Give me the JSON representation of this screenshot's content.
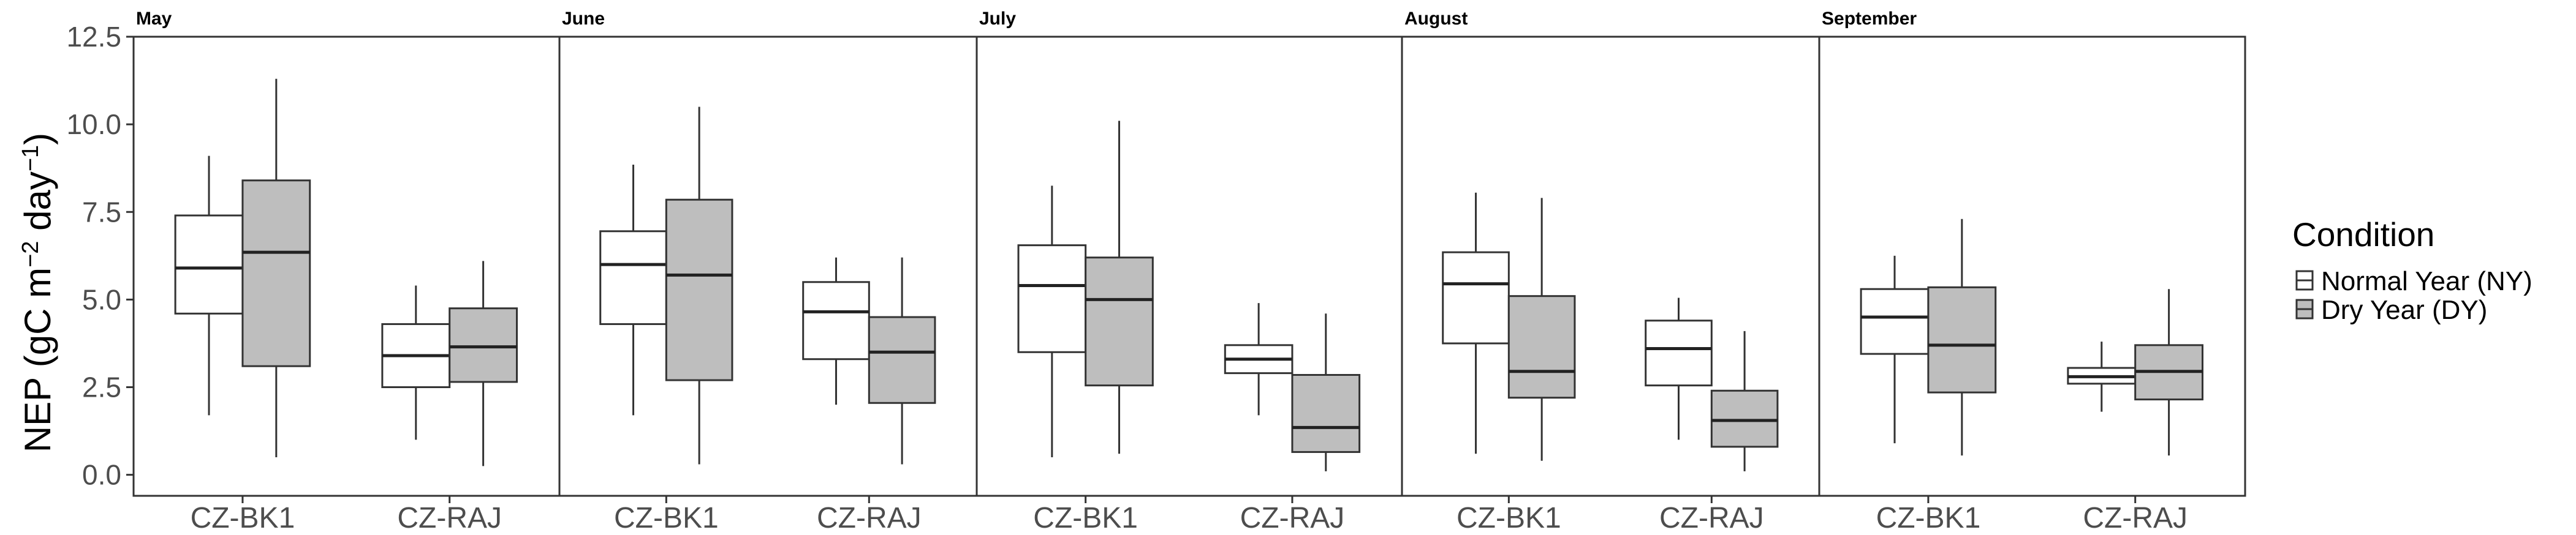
{
  "chart_data": {
    "type": "boxplot",
    "ylabel_main": "NEP (gC m",
    "ylabel_exp1": "−2",
    "ylabel_mid": " day",
    "ylabel_exp2": "−1",
    "ylabel_end": ")",
    "ylim": [
      -0.6,
      12.5
    ],
    "yticks": [
      "0.0",
      "2.5",
      "5.0",
      "7.5",
      "10.0",
      "12.5"
    ],
    "ytick_values": [
      0,
      2.5,
      5,
      7.5,
      10,
      12.5
    ],
    "sites": [
      "CZ-BK1",
      "CZ-RAJ"
    ],
    "legend": {
      "title": "Condition",
      "entries": [
        {
          "label": "Normal Year (NY)",
          "color": "#ffffff"
        },
        {
          "label": "Dry Year (DY)",
          "color": "#bebebe"
        }
      ]
    },
    "panels": [
      {
        "month": "May",
        "boxes": [
          {
            "site": "CZ-BK1",
            "condition": "NY",
            "min": 1.7,
            "q1": 4.6,
            "median": 5.9,
            "q3": 7.4,
            "max": 9.1
          },
          {
            "site": "CZ-BK1",
            "condition": "DY",
            "min": 0.5,
            "q1": 3.1,
            "median": 6.35,
            "q3": 8.4,
            "max": 11.3
          },
          {
            "site": "CZ-RAJ",
            "condition": "NY",
            "min": 1.0,
            "q1": 2.5,
            "median": 3.4,
            "q3": 4.3,
            "max": 5.4
          },
          {
            "site": "CZ-RAJ",
            "condition": "DY",
            "min": 0.25,
            "q1": 2.65,
            "median": 3.65,
            "q3": 4.75,
            "max": 6.1
          }
        ]
      },
      {
        "month": "June",
        "boxes": [
          {
            "site": "CZ-BK1",
            "condition": "NY",
            "min": 1.7,
            "q1": 4.3,
            "median": 6.0,
            "q3": 6.95,
            "max": 8.85
          },
          {
            "site": "CZ-BK1",
            "condition": "DY",
            "min": 0.3,
            "q1": 2.7,
            "median": 5.7,
            "q3": 7.85,
            "max": 10.5
          },
          {
            "site": "CZ-RAJ",
            "condition": "NY",
            "min": 2.0,
            "q1": 3.3,
            "median": 4.65,
            "q3": 5.5,
            "max": 6.2
          },
          {
            "site": "CZ-RAJ",
            "condition": "DY",
            "min": 0.3,
            "q1": 2.05,
            "median": 3.5,
            "q3": 4.5,
            "max": 6.2
          }
        ]
      },
      {
        "month": "July",
        "boxes": [
          {
            "site": "CZ-BK1",
            "condition": "NY",
            "min": 0.5,
            "q1": 3.5,
            "median": 5.4,
            "q3": 6.55,
            "max": 8.25
          },
          {
            "site": "CZ-BK1",
            "condition": "DY",
            "min": 0.6,
            "q1": 2.55,
            "median": 5.0,
            "q3": 6.2,
            "max": 10.1
          },
          {
            "site": "CZ-RAJ",
            "condition": "NY",
            "min": 1.7,
            "q1": 2.9,
            "median": 3.3,
            "q3": 3.7,
            "max": 4.9
          },
          {
            "site": "CZ-RAJ",
            "condition": "DY",
            "min": 0.1,
            "q1": 0.65,
            "median": 1.35,
            "q3": 2.85,
            "max": 4.6
          }
        ]
      },
      {
        "month": "August",
        "boxes": [
          {
            "site": "CZ-BK1",
            "condition": "NY",
            "min": 0.6,
            "q1": 3.75,
            "median": 5.45,
            "q3": 6.35,
            "max": 8.05
          },
          {
            "site": "CZ-BK1",
            "condition": "DY",
            "min": 0.4,
            "q1": 2.2,
            "median": 2.95,
            "q3": 5.1,
            "max": 7.9
          },
          {
            "site": "CZ-RAJ",
            "condition": "NY",
            "min": 1.0,
            "q1": 2.55,
            "median": 3.6,
            "q3": 4.4,
            "max": 5.05
          },
          {
            "site": "CZ-RAJ",
            "condition": "DY",
            "min": 0.1,
            "q1": 0.8,
            "median": 1.55,
            "q3": 2.4,
            "max": 4.1
          }
        ]
      },
      {
        "month": "September",
        "boxes": [
          {
            "site": "CZ-BK1",
            "condition": "NY",
            "min": 0.9,
            "q1": 3.45,
            "median": 4.5,
            "q3": 5.3,
            "max": 6.25
          },
          {
            "site": "CZ-BK1",
            "condition": "DY",
            "min": 0.55,
            "q1": 2.35,
            "median": 3.7,
            "q3": 5.35,
            "max": 7.3
          },
          {
            "site": "CZ-RAJ",
            "condition": "NY",
            "min": 1.8,
            "q1": 2.6,
            "median": 2.8,
            "q3": 3.05,
            "max": 3.8
          },
          {
            "site": "CZ-RAJ",
            "condition": "DY",
            "min": 0.55,
            "q1": 2.15,
            "median": 2.95,
            "q3": 3.7,
            "max": 5.3
          }
        ]
      }
    ]
  }
}
